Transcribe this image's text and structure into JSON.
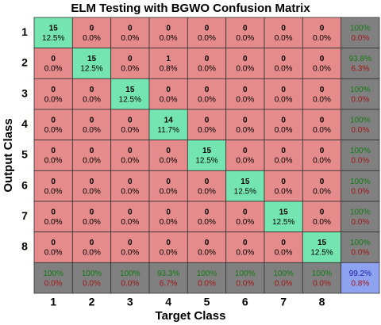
{
  "chart_data": {
    "type": "confusion",
    "title": "ELM Testing with BGWO Confusion Matrix",
    "x_label": "Target Class",
    "y_label": "Output Class",
    "categories": [
      "1",
      "2",
      "3",
      "4",
      "5",
      "6",
      "7",
      "8"
    ],
    "counts": [
      [
        15,
        0,
        0,
        0,
        0,
        0,
        0,
        0
      ],
      [
        0,
        15,
        0,
        1,
        0,
        0,
        0,
        0
      ],
      [
        0,
        0,
        15,
        0,
        0,
        0,
        0,
        0
      ],
      [
        0,
        0,
        0,
        14,
        0,
        0,
        0,
        0
      ],
      [
        0,
        0,
        0,
        0,
        15,
        0,
        0,
        0
      ],
      [
        0,
        0,
        0,
        0,
        0,
        15,
        0,
        0
      ],
      [
        0,
        0,
        0,
        0,
        0,
        0,
        15,
        0
      ],
      [
        0,
        0,
        0,
        0,
        0,
        0,
        0,
        15
      ]
    ],
    "percents": [
      [
        12.5,
        0,
        0,
        0,
        0,
        0,
        0,
        0
      ],
      [
        0,
        12.5,
        0,
        0.8,
        0,
        0,
        0,
        0
      ],
      [
        0,
        0,
        12.5,
        0,
        0,
        0,
        0,
        0
      ],
      [
        0,
        0,
        0,
        11.7,
        0,
        0,
        0,
        0
      ],
      [
        0,
        0,
        0,
        0,
        12.5,
        0,
        0,
        0
      ],
      [
        0,
        0,
        0,
        0,
        0,
        12.5,
        0,
        0
      ],
      [
        0,
        0,
        0,
        0,
        0,
        0,
        12.5,
        0
      ],
      [
        0,
        0,
        0,
        0,
        0,
        0,
        0,
        12.5
      ]
    ],
    "percent_labels": [
      [
        "12.5%",
        "0.0%",
        "0.0%",
        "0.0%",
        "0.0%",
        "0.0%",
        "0.0%",
        "0.0%"
      ],
      [
        "0.0%",
        "12.5%",
        "0.0%",
        "0.8%",
        "0.0%",
        "0.0%",
        "0.0%",
        "0.0%"
      ],
      [
        "0.0%",
        "0.0%",
        "12.5%",
        "0.0%",
        "0.0%",
        "0.0%",
        "0.0%",
        "0.0%"
      ],
      [
        "0.0%",
        "0.0%",
        "0.0%",
        "11.7%",
        "0.0%",
        "0.0%",
        "0.0%",
        "0.0%"
      ],
      [
        "0.0%",
        "0.0%",
        "0.0%",
        "0.0%",
        "12.5%",
        "0.0%",
        "0.0%",
        "0.0%"
      ],
      [
        "0.0%",
        "0.0%",
        "0.0%",
        "0.0%",
        "0.0%",
        "12.5%",
        "0.0%",
        "0.0%"
      ],
      [
        "0.0%",
        "0.0%",
        "0.0%",
        "0.0%",
        "0.0%",
        "0.0%",
        "12.5%",
        "0.0%"
      ],
      [
        "0.0%",
        "0.0%",
        "0.0%",
        "0.0%",
        "0.0%",
        "0.0%",
        "0.0%",
        "12.5%"
      ]
    ],
    "row_summary": {
      "correct": [
        100,
        93.8,
        100,
        100,
        100,
        100,
        100,
        100
      ],
      "correct_labels": [
        "100%",
        "93.8%",
        "100%",
        "100%",
        "100%",
        "100%",
        "100%",
        "100%"
      ],
      "error": [
        0,
        6.3,
        0,
        0,
        0,
        0,
        0,
        0
      ],
      "error_labels": [
        "0.0%",
        "6.3%",
        "0.0%",
        "0.0%",
        "0.0%",
        "0.0%",
        "0.0%",
        "0.0%"
      ]
    },
    "column_summary": {
      "correct": [
        100,
        100,
        100,
        93.3,
        100,
        100,
        100,
        100
      ],
      "correct_labels": [
        "100%",
        "100%",
        "100%",
        "93.3%",
        "100%",
        "100%",
        "100%",
        "100%"
      ],
      "error": [
        0,
        0,
        0,
        6.7,
        0,
        0,
        0,
        0
      ],
      "error_labels": [
        "0.0%",
        "0.0%",
        "0.0%",
        "6.7%",
        "0.0%",
        "0.0%",
        "0.0%",
        "0.0%"
      ]
    },
    "overall": {
      "correct": 99.2,
      "correct_label": "99.2%",
      "error": 0.8,
      "error_label": "0.8%"
    },
    "colors": {
      "correct": "#74e4b0",
      "wrong": "#e68b8b",
      "summary": "#808080",
      "overall": "#8ea3f0",
      "correct_text": "#127a12",
      "wrong_text": "#a31515",
      "overall_text": "#1a1aa8"
    }
  }
}
